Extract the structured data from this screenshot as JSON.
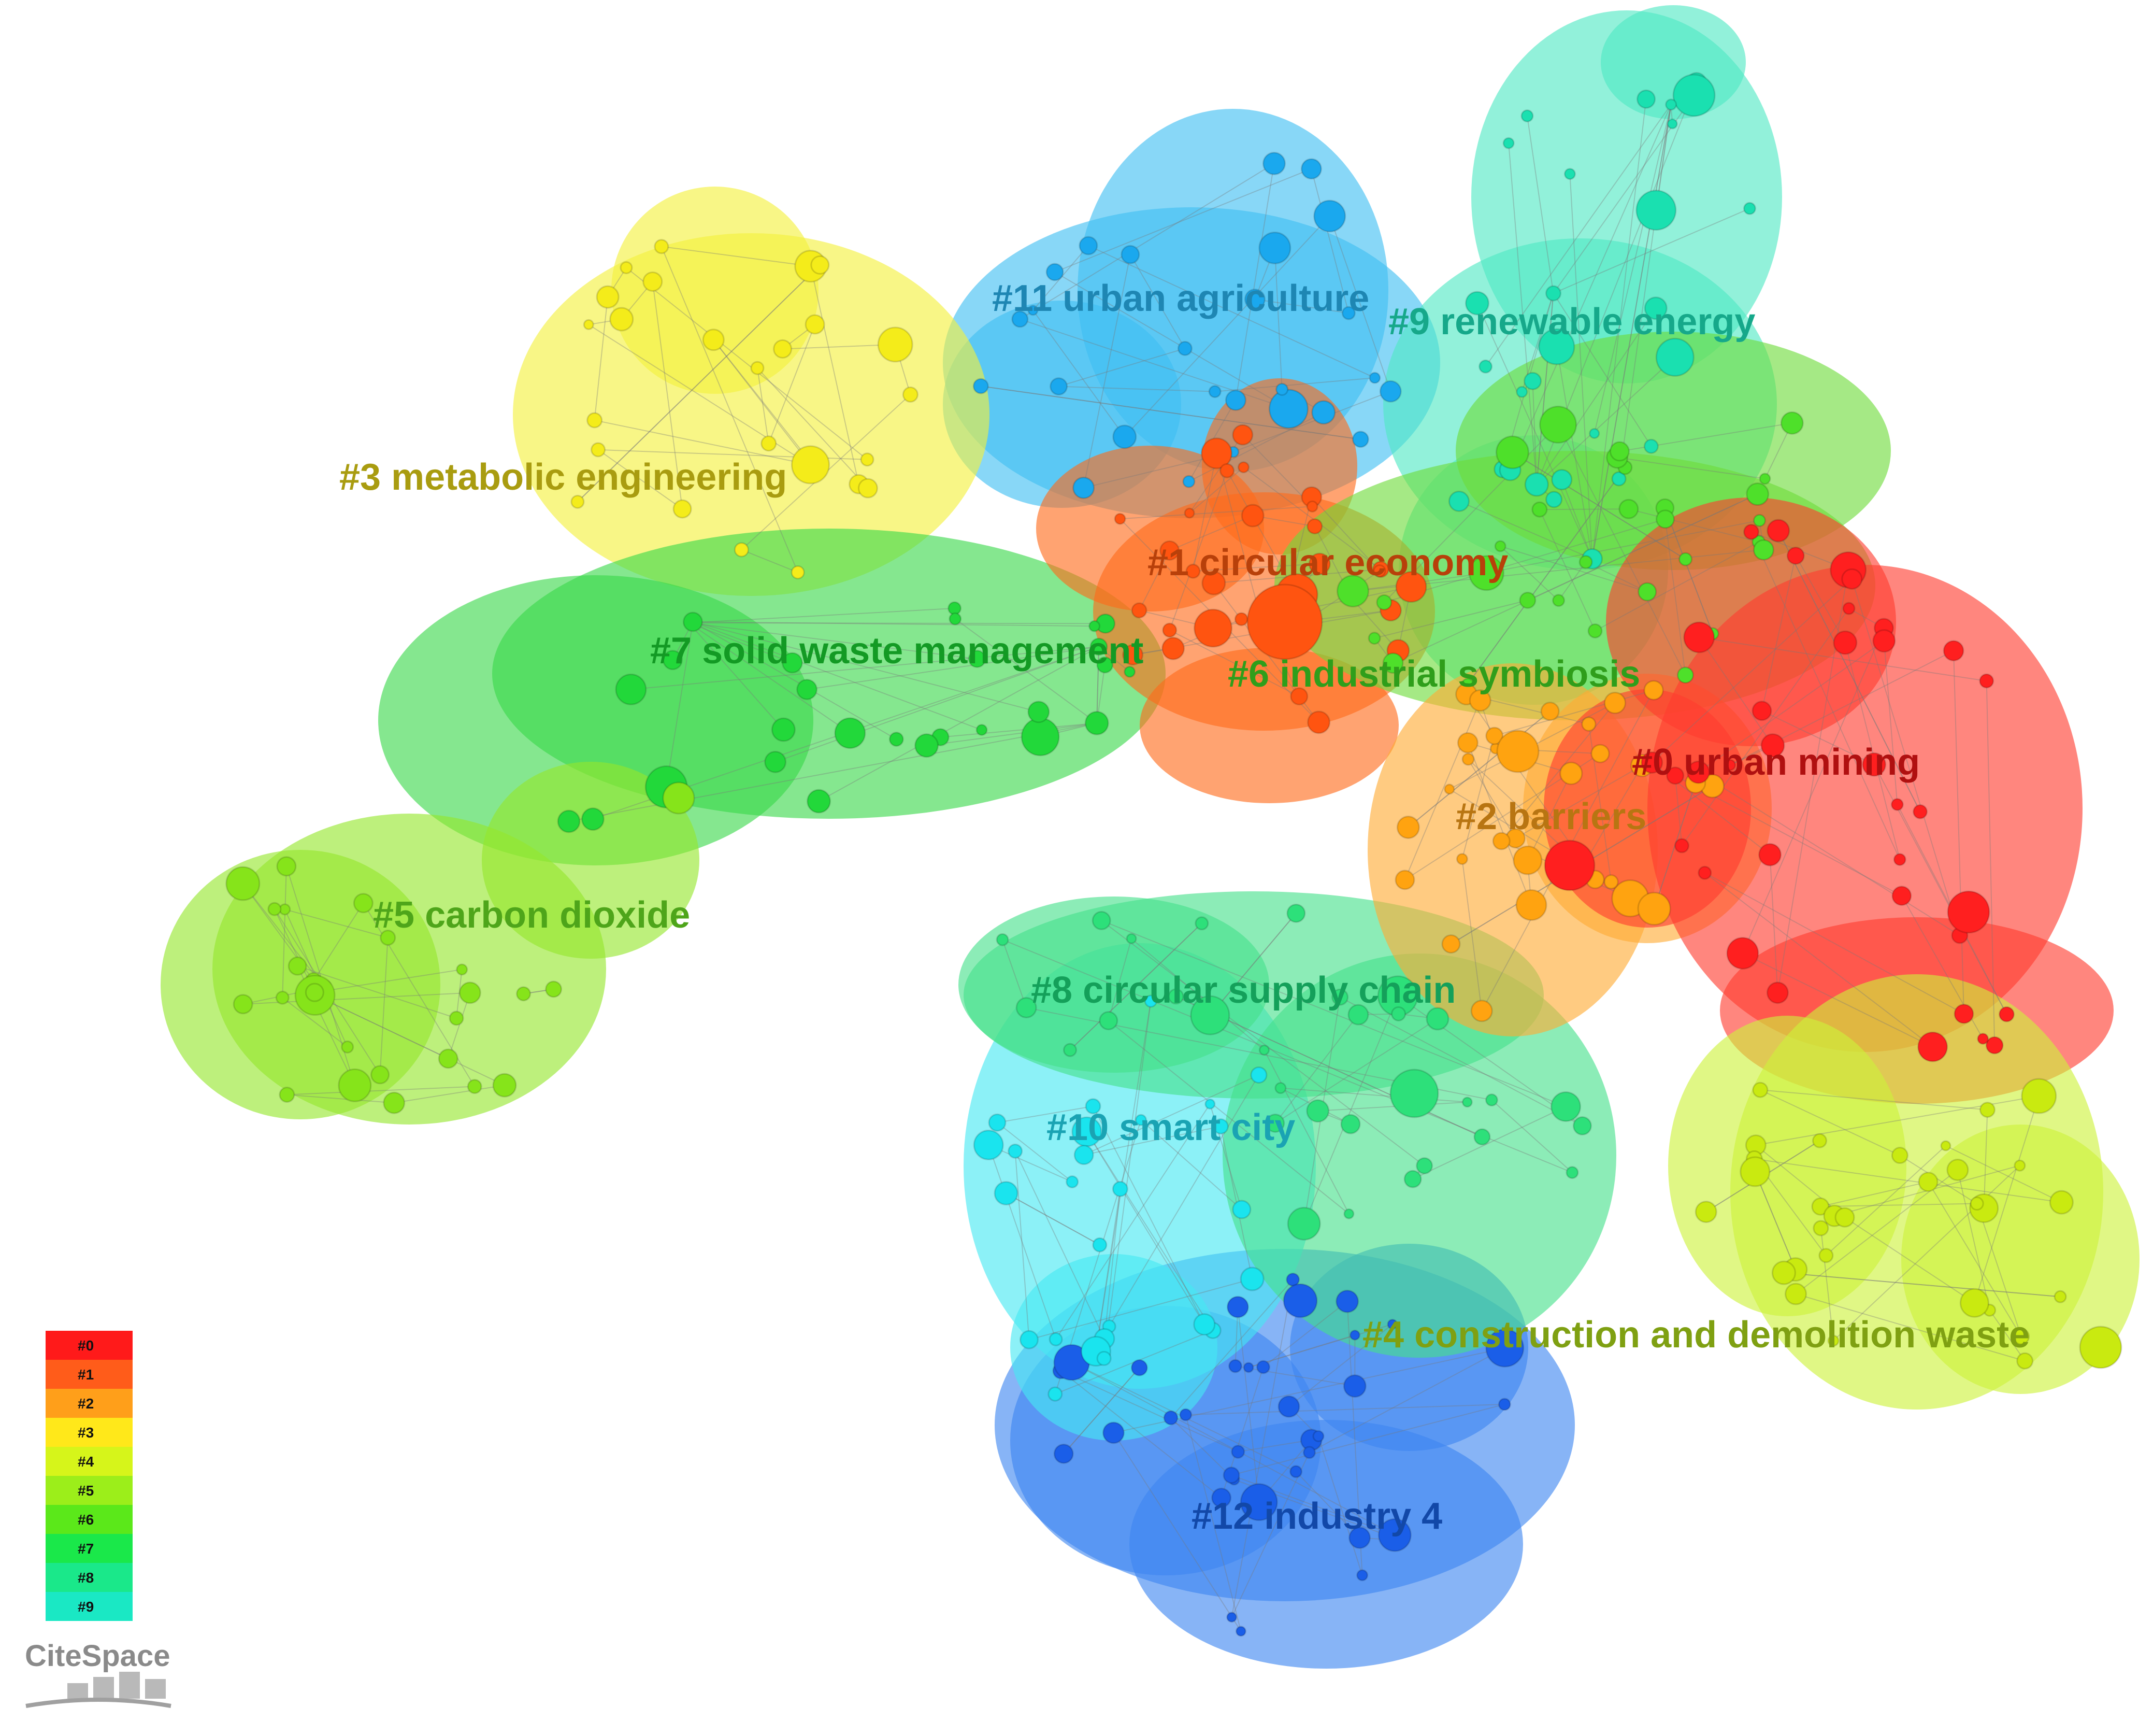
{
  "clusters": [
    {
      "id": "#0",
      "label": "urban mining",
      "color": "#ff3b2f",
      "text": "#b01010"
    },
    {
      "id": "#1",
      "label": "circular economy",
      "color": "#ff6a1a",
      "text": "#b8400a"
    },
    {
      "id": "#2",
      "label": "barriers",
      "color": "#ffab33",
      "text": "#b87512"
    },
    {
      "id": "#3",
      "label": "metabolic engineering",
      "color": "#f4f03c",
      "text": "#a99c10"
    },
    {
      "id": "#4",
      "label": "construction and demolition waste",
      "color": "#cdf23a",
      "text": "#7fa012"
    },
    {
      "id": "#5",
      "label": "carbon dioxide",
      "color": "#94e62c",
      "text": "#4ea51a"
    },
    {
      "id": "#6",
      "label": "industrial symbiosis",
      "color": "#6edc3a",
      "text": "#2f9e1b"
    },
    {
      "id": "#7",
      "label": "solid waste management",
      "color": "#3ad84a",
      "text": "#139a24"
    },
    {
      "id": "#8",
      "label": "circular supply chain",
      "color": "#45e08a",
      "text": "#14a05a"
    },
    {
      "id": "#9",
      "label": "renewable energy",
      "color": "#4fe8c4",
      "text": "#16a88a"
    },
    {
      "id": "#10",
      "label": "smart city",
      "color": "#46e8f2",
      "text": "#1aa3b3"
    },
    {
      "id": "#11",
      "label": "urban agriculture",
      "color": "#3fbff2",
      "text": "#1e86b3"
    },
    {
      "id": "#12",
      "label": "industry 4",
      "color": "#3e86f0",
      "text": "#1248a8"
    }
  ],
  "legend": {
    "items": [
      "#0",
      "#1",
      "#2",
      "#3",
      "#4",
      "#5",
      "#6",
      "#7",
      "#8",
      "#9"
    ],
    "colors": [
      "#ff1a1a",
      "#ff5c1a",
      "#ff9f1a",
      "#ffe81a",
      "#d6f51a",
      "#9cee1a",
      "#5be81a",
      "#1ae84a",
      "#1ae88a",
      "#1ae8c4"
    ]
  },
  "brand": "CiteSpace"
}
